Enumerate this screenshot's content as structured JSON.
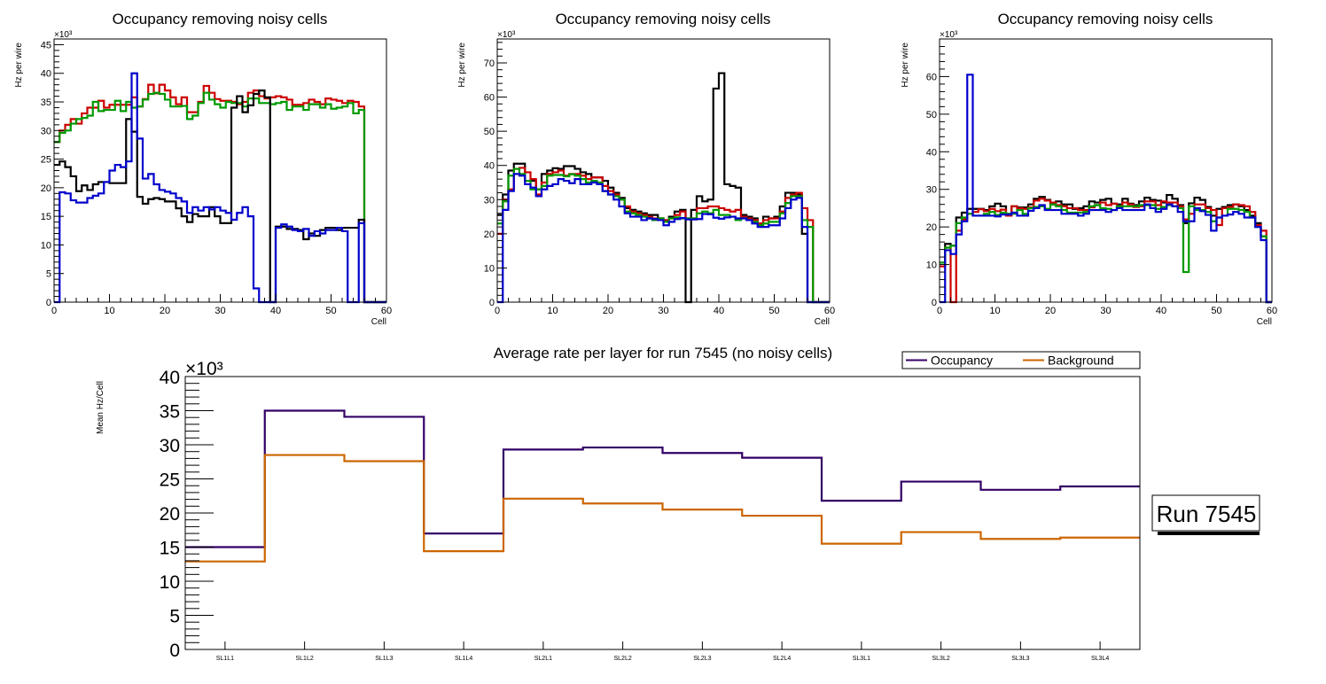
{
  "chart_data": [
    {
      "type": "line",
      "subtype": "step-histogram",
      "title": "Occupancy removing noisy cells",
      "xlabel": "Cell",
      "ylabel": "Hz per wire",
      "y_exponent_label": "×10³",
      "xlim": [
        0,
        60
      ],
      "ylim": [
        0,
        46
      ],
      "xticks": [
        0,
        10,
        20,
        30,
        40,
        50,
        60
      ],
      "yticks": [
        0,
        5,
        10,
        15,
        20,
        25,
        30,
        35,
        40,
        45
      ],
      "units": "thousands",
      "series": [
        {
          "name": "red",
          "color": "#cc0000",
          "values": [
            28,
            30,
            31,
            32,
            31.2,
            33,
            34,
            34,
            35.2,
            34,
            34.5,
            34.5,
            34.5,
            34.5,
            35.8,
            34.2,
            35.5,
            38,
            36.5,
            38,
            37,
            35.8,
            34.6,
            35.8,
            33.2,
            33.2,
            35,
            37.8,
            36.6,
            35.5,
            35.2,
            35.2,
            35,
            34.6,
            35,
            36.6,
            37,
            36,
            35.6,
            35.8,
            36,
            35.8,
            35.4,
            34.5,
            34.5,
            34.8,
            35.4,
            35,
            34.6,
            35.6,
            35.4,
            35.2,
            34.8,
            35.2,
            35,
            34.2,
            0,
            0,
            0,
            0
          ]
        },
        {
          "name": "green",
          "color": "#009900",
          "values": [
            28,
            29.6,
            30,
            31.2,
            32,
            32.2,
            32.6,
            35,
            33.4,
            33.6,
            33.6,
            35.2,
            33.4,
            35,
            34,
            34.2,
            35.4,
            36.4,
            36.6,
            36.4,
            35.4,
            34.2,
            34.2,
            34.3,
            32,
            32.6,
            34.8,
            36.6,
            35.4,
            34.6,
            34,
            35,
            34.8,
            34.8,
            34.2,
            35.6,
            35.6,
            34.8,
            34.8,
            34.6,
            34.8,
            35,
            33.6,
            34.2,
            34.2,
            33.6,
            34.6,
            34.6,
            34,
            34.6,
            33.8,
            34,
            34.2,
            34.8,
            33,
            33.6,
            0,
            0,
            0,
            0
          ]
        },
        {
          "name": "black",
          "color": "#000000",
          "values": [
            24,
            24.6,
            23.6,
            22,
            19.4,
            20.4,
            19.6,
            20.6,
            21,
            21,
            20.8,
            20.8,
            20.8,
            32,
            29.8,
            18.4,
            17.2,
            18,
            18.2,
            18,
            17.6,
            17.6,
            16.4,
            15,
            14,
            15.4,
            15,
            15,
            16.6,
            15,
            13.8,
            13.8,
            34,
            36,
            33.2,
            34.4,
            36.4,
            37,
            35.8,
            0,
            13.2,
            13.2,
            12.8,
            12.8,
            12.6,
            11,
            12,
            11.6,
            12.6,
            13,
            13,
            12.6,
            13,
            13,
            13,
            14.4,
            0,
            0,
            0,
            0
          ]
        },
        {
          "name": "blue",
          "color": "#0000cc",
          "values": [
            0,
            19.2,
            19,
            17.8,
            17.4,
            17.4,
            18.2,
            18.6,
            19,
            21,
            23,
            24,
            23.6,
            24.6,
            40,
            28.6,
            21.6,
            22.4,
            20.6,
            19.6,
            19.3,
            19,
            18.2,
            17.6,
            15.6,
            16.6,
            16,
            16.6,
            16.2,
            16.6,
            16,
            15.6,
            14.4,
            15.6,
            16.6,
            15,
            2.4,
            0,
            0,
            0,
            13,
            13.6,
            13.2,
            12.6,
            12.4,
            12.8,
            11.6,
            12.4,
            12,
            12.6,
            12.6,
            13,
            12.4,
            0,
            0,
            13.8,
            0,
            0,
            0,
            0
          ]
        }
      ]
    },
    {
      "type": "line",
      "subtype": "step-histogram",
      "title": "Occupancy removing noisy cells",
      "xlabel": "Cell",
      "ylabel": "Hz per wire",
      "y_exponent_label": "×10³",
      "xlim": [
        0,
        60
      ],
      "ylim": [
        0,
        77
      ],
      "xticks": [
        0,
        10,
        20,
        30,
        40,
        50,
        60
      ],
      "yticks": [
        0,
        10,
        20,
        30,
        40,
        50,
        60,
        70
      ],
      "units": "thousands",
      "series": [
        {
          "name": "black",
          "color": "#000000",
          "values": [
            25.5,
            31.5,
            38.5,
            40.5,
            40.5,
            35.5,
            35.5,
            33,
            37.5,
            38.5,
            39.2,
            39,
            39.8,
            39.8,
            39,
            38,
            37.5,
            36.5,
            36.5,
            35.5,
            33.5,
            32,
            30.5,
            27.5,
            27,
            26.5,
            26,
            25.5,
            25.5,
            24.5,
            24,
            25,
            26.5,
            27,
            0,
            27,
            31,
            29.5,
            30,
            62.5,
            67,
            34.5,
            34,
            33.5,
            25.5,
            25,
            24.5,
            23,
            25,
            24.5,
            25,
            28,
            32,
            32,
            31.5,
            20,
            0,
            0,
            0,
            0
          ]
        },
        {
          "name": "red",
          "color": "#cc0000",
          "values": [
            20,
            30,
            33,
            39,
            39.3,
            38,
            36,
            31.5,
            35,
            37.5,
            38,
            38.5,
            37,
            37.5,
            37.5,
            37,
            36,
            36.5,
            36.5,
            34,
            32.5,
            31.5,
            30,
            28,
            26.5,
            26,
            25.5,
            25,
            24.5,
            24.5,
            24,
            24.5,
            25.5,
            26.5,
            24.5,
            24.5,
            27.5,
            27.5,
            28,
            28,
            27.5,
            27,
            26.5,
            27,
            25,
            24.5,
            24,
            23,
            24,
            24.5,
            24.5,
            26.5,
            30.5,
            31.5,
            32,
            27.5,
            24,
            0,
            0,
            0
          ]
        },
        {
          "name": "green",
          "color": "#009900",
          "values": [
            23,
            29.5,
            37,
            39,
            37.5,
            35.5,
            33,
            33,
            34,
            37,
            37.2,
            37.2,
            36.8,
            37.4,
            37,
            36,
            35,
            35.5,
            35,
            32.5,
            31.5,
            31,
            30,
            26.5,
            26,
            25.5,
            25,
            24.5,
            24,
            24.5,
            23.5,
            24.5,
            24.8,
            24.5,
            24.5,
            24.5,
            26,
            26.5,
            26,
            27,
            25.5,
            25.5,
            25,
            24,
            24.5,
            24,
            23.5,
            22.5,
            23,
            23.5,
            23.5,
            26,
            29,
            31,
            31,
            24,
            22,
            0,
            0,
            0
          ]
        },
        {
          "name": "blue",
          "color": "#0000cc",
          "values": [
            0,
            27,
            32.5,
            37.5,
            37,
            34.5,
            33.5,
            31,
            33,
            34,
            34.5,
            36,
            35.5,
            34.8,
            36,
            34.5,
            34.5,
            35,
            34.5,
            32.5,
            31.5,
            30,
            28,
            26,
            25,
            25,
            24,
            24.5,
            24.3,
            24,
            22.5,
            23.5,
            24.3,
            24.6,
            24.2,
            24.2,
            24.3,
            25.8,
            25.7,
            24.7,
            24.4,
            24.8,
            25,
            24.5,
            24.5,
            24,
            23,
            22,
            22,
            22.5,
            22.5,
            24.5,
            27.5,
            30,
            30.5,
            22,
            0,
            0,
            0,
            0
          ]
        }
      ]
    },
    {
      "type": "line",
      "subtype": "step-histogram",
      "title": "Occupancy removing noisy cells",
      "xlabel": "Cell",
      "ylabel": "Hz per wire",
      "y_exponent_label": "×10³",
      "xlim": [
        0,
        60
      ],
      "ylim": [
        0,
        70
      ],
      "xticks": [
        0,
        10,
        20,
        30,
        40,
        50,
        60
      ],
      "yticks": [
        0,
        10,
        20,
        30,
        40,
        50,
        60
      ],
      "units": "thousands",
      "series": [
        {
          "name": "black",
          "color": "#000000",
          "values": [
            10.5,
            15.5,
            15,
            22.5,
            23.8,
            24.8,
            24.8,
            24.8,
            24.5,
            25.5,
            26.2,
            25.5,
            23.5,
            25.5,
            25.2,
            25.2,
            26,
            27.5,
            28,
            27.2,
            26,
            26.8,
            26,
            26,
            24.8,
            25,
            25.5,
            26.8,
            26.5,
            27.2,
            27.5,
            26.2,
            26,
            27.5,
            26.2,
            25.8,
            26.8,
            27.8,
            27.2,
            27,
            26.5,
            28.5,
            27.5,
            25.8,
            21,
            26.3,
            27.8,
            27.2,
            25.3,
            23,
            24.8,
            25.3,
            25.8,
            26,
            25.5,
            24.5,
            23,
            21,
            17.5,
            0
          ]
        },
        {
          "name": "red",
          "color": "#cc0000",
          "values": [
            9.5,
            14.5,
            0,
            19,
            22,
            23.5,
            24,
            24.7,
            24.2,
            24.8,
            24.2,
            24.6,
            23,
            25.5,
            25,
            24.8,
            25.2,
            27,
            27.5,
            27,
            26.5,
            25.8,
            25.5,
            25,
            25,
            24.5,
            24.5,
            25.2,
            25.8,
            26.5,
            25.8,
            26.2,
            25.2,
            26.5,
            26,
            25.3,
            25.5,
            26.8,
            26.8,
            25.8,
            26.8,
            26.5,
            26.5,
            25.5,
            22,
            23.5,
            26,
            26,
            25,
            24.5,
            20.5,
            25,
            25.3,
            26,
            25.8,
            25.5,
            24,
            20.5,
            19,
            0
          ]
        },
        {
          "name": "green",
          "color": "#009900",
          "values": [
            10.5,
            14.5,
            15,
            21,
            22.5,
            23.5,
            23,
            23,
            23.5,
            24,
            23.2,
            23.8,
            23.5,
            23.5,
            24.5,
            23.5,
            25,
            25.3,
            25.5,
            24.8,
            26,
            25.5,
            24.5,
            23.8,
            23.8,
            23.8,
            24,
            25.5,
            25.8,
            25,
            24.8,
            24.5,
            25.5,
            25.5,
            25.5,
            25.5,
            25.8,
            25.8,
            25.8,
            24.8,
            25.3,
            25.8,
            25.5,
            25,
            8,
            25.5,
            24.5,
            24.5,
            24,
            21.5,
            22.5,
            23,
            24.8,
            24.8,
            24.5,
            24,
            22.5,
            20,
            17.5,
            0
          ]
        },
        {
          "name": "blue",
          "color": "#0000cc",
          "values": [
            0,
            13.8,
            12.8,
            18,
            21.5,
            60.5,
            23,
            23,
            23,
            23,
            22.8,
            23.3,
            23.3,
            23.8,
            23,
            23,
            24.3,
            25,
            25.8,
            24.5,
            24.5,
            24.5,
            23.5,
            23.5,
            23.5,
            23,
            23.5,
            24.5,
            24.5,
            24.5,
            24,
            24.5,
            25,
            24.5,
            24.5,
            24.5,
            24.5,
            26,
            25,
            24,
            24.8,
            26,
            25.5,
            24,
            21.5,
            21.5,
            25,
            24.2,
            23.2,
            19,
            22.5,
            23,
            23.3,
            24,
            23.5,
            22.5,
            22.5,
            20,
            16.5,
            0
          ]
        }
      ]
    },
    {
      "type": "line",
      "subtype": "step-histogram",
      "title": "Average rate per layer for run 7545 (no noisy cells)",
      "xlabel": "",
      "ylabel": "Mean Hz/Cell",
      "y_exponent_label": "×10³",
      "categories": [
        "SL1L1",
        "SL1L2",
        "SL1L3",
        "SL1L4",
        "SL2L1",
        "SL2L2",
        "SL2L3",
        "SL2L4",
        "SL3L1",
        "SL3L2",
        "SL3L3",
        "SL3L4"
      ],
      "ylim": [
        0,
        40
      ],
      "yticks": [
        0,
        5,
        10,
        15,
        20,
        25,
        30,
        35,
        40
      ],
      "units": "thousands",
      "legend": {
        "position": "top-right",
        "entries": [
          "Occupancy",
          "Background"
        ]
      },
      "annotation": "Run 7545",
      "series": [
        {
          "name": "Occupancy",
          "color": "#330066",
          "values": [
            15,
            35,
            34.1,
            17,
            29.3,
            29.6,
            28.8,
            28.1,
            21.8,
            24.6,
            23.4,
            23.9
          ]
        },
        {
          "name": "Background",
          "color": "#cc6600",
          "values": [
            12.9,
            28.5,
            27.6,
            14.4,
            22.1,
            21.4,
            20.5,
            19.6,
            15.5,
            17.2,
            16.2,
            16.4
          ]
        }
      ]
    }
  ]
}
